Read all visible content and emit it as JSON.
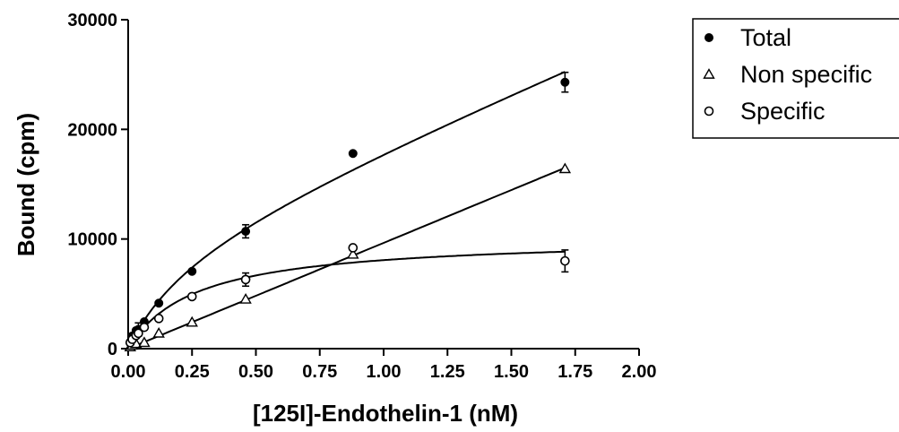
{
  "chart_data": {
    "type": "scatter",
    "title": "",
    "xlabel": "[125I]-Endothelin-1 (nM)",
    "ylabel": "Bound (cpm)",
    "xlim": [
      0,
      2
    ],
    "ylim": [
      0,
      30000
    ],
    "x_ticks": [
      0,
      0.25,
      0.5,
      0.75,
      1,
      1.25,
      1.5,
      1.75,
      2
    ],
    "x_tick_labels": [
      "0.00",
      "0.25",
      "0.50",
      "0.75",
      "1.00",
      "1.25",
      "1.50",
      "1.75",
      "2.00"
    ],
    "y_ticks": [
      0,
      10000,
      20000,
      30000
    ],
    "y_tick_labels": [
      "0",
      "10000",
      "20000",
      "30000"
    ],
    "grid": false,
    "legend_position": "outside-top-right",
    "series": [
      {
        "name": "Total",
        "marker": "filled-circle",
        "x": [
          0.008,
          0.016,
          0.031,
          0.04,
          0.063,
          0.12,
          0.25,
          0.46,
          0.88,
          1.71
        ],
        "y": [
          600,
          1150,
          1650,
          1750,
          2450,
          4150,
          7050,
          10700,
          17800,
          24300
        ],
        "error": [
          0,
          0,
          0,
          600,
          0,
          0,
          0,
          600,
          0,
          900
        ],
        "fit": "hyperbola-plus-linear"
      },
      {
        "name": "Non specific",
        "marker": "open-triangle",
        "x": [
          0.008,
          0.016,
          0.031,
          0.063,
          0.12,
          0.25,
          0.46,
          0.88,
          1.71
        ],
        "y": [
          150,
          300,
          450,
          550,
          1400,
          2400,
          4500,
          8600,
          16400
        ],
        "error": [
          0,
          0,
          0,
          0,
          0,
          0,
          0,
          0,
          0
        ],
        "fit": "linear"
      },
      {
        "name": "Specific",
        "marker": "open-circle",
        "x": [
          0.008,
          0.016,
          0.031,
          0.04,
          0.063,
          0.12,
          0.25,
          0.46,
          0.88,
          1.71
        ],
        "y": [
          550,
          850,
          1200,
          1400,
          1950,
          2750,
          4750,
          6300,
          9200,
          8000
        ],
        "error": [
          0,
          0,
          0,
          0,
          0,
          0,
          0,
          600,
          0,
          1000
        ],
        "fit": "hyperbola"
      }
    ]
  }
}
